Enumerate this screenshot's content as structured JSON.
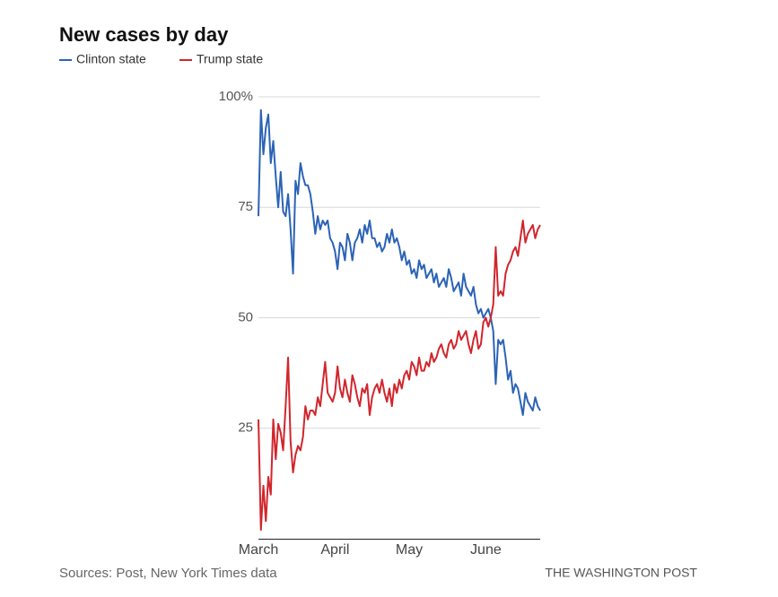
{
  "chart_data": {
    "type": "line",
    "title": "New cases by day",
    "source": "Sources: Post, New York Times data",
    "credit": "THE WASHINGTON POST",
    "categories": [
      "March",
      null,
      null,
      null,
      null,
      null,
      null,
      null,
      null,
      null,
      null,
      null,
      null,
      null,
      null,
      null,
      null,
      null,
      null,
      null,
      null,
      null,
      null,
      null,
      null,
      null,
      null,
      null,
      null,
      null,
      null,
      "April",
      null,
      null,
      null,
      null,
      null,
      null,
      null,
      null,
      null,
      null,
      null,
      null,
      null,
      null,
      null,
      null,
      null,
      null,
      null,
      null,
      null,
      null,
      null,
      null,
      null,
      null,
      null,
      null,
      null,
      "May",
      null,
      null,
      null,
      null,
      null,
      null,
      null,
      null,
      null,
      null,
      null,
      null,
      null,
      null,
      null,
      null,
      null,
      null,
      null,
      null,
      null,
      null,
      null,
      null,
      null,
      null,
      null,
      null,
      null,
      null,
      "June",
      null,
      null,
      null,
      null,
      null,
      null,
      null,
      null,
      null,
      null,
      null,
      null,
      null,
      null,
      null,
      null,
      null,
      null,
      null,
      null,
      null,
      null
    ],
    "series": [
      {
        "name": "Clinton state",
        "color": "#2b63b6",
        "values": [
          73,
          97,
          87,
          93,
          96,
          85,
          90,
          82,
          75,
          83,
          74,
          73,
          78,
          70,
          60,
          81,
          78,
          85,
          82,
          80,
          80,
          78,
          74,
          69,
          73,
          70,
          72,
          71,
          72,
          68,
          67,
          65,
          61,
          67,
          66,
          63,
          69,
          67,
          63,
          67,
          68,
          70,
          67,
          71,
          69,
          72,
          68,
          68,
          66,
          67,
          65,
          66,
          69,
          67,
          70,
          67,
          68,
          66,
          63,
          65,
          62,
          63,
          60,
          61,
          59,
          63,
          61,
          62,
          59,
          60,
          61,
          58,
          60,
          57,
          58,
          59,
          57,
          61,
          59,
          56,
          57,
          58,
          55,
          60,
          57,
          56,
          55,
          57,
          53,
          51,
          52,
          50,
          51,
          52,
          50,
          47,
          35,
          45,
          44,
          45,
          41,
          36,
          38,
          33,
          35,
          34,
          31,
          28,
          33,
          31,
          30,
          29,
          32,
          30,
          29
        ]
      },
      {
        "name": "Trump state",
        "color": "#d1262c",
        "values": [
          27,
          2,
          12,
          4,
          14,
          10,
          27,
          18,
          26,
          24,
          20,
          30,
          41,
          22,
          15,
          19,
          21,
          20,
          23,
          30,
          27,
          29,
          29,
          28,
          32,
          30,
          35,
          40,
          33,
          32,
          31,
          33,
          39,
          34,
          32,
          36,
          33,
          31,
          37,
          35,
          32,
          30,
          34,
          33,
          35,
          28,
          32,
          34,
          35,
          33,
          36,
          33,
          31,
          34,
          30,
          35,
          33,
          36,
          34,
          37,
          38,
          36,
          40,
          39,
          37,
          41,
          38,
          38,
          40,
          39,
          42,
          40,
          41,
          43,
          44,
          42,
          41,
          44,
          45,
          43,
          44,
          47,
          45,
          46,
          47,
          44,
          42,
          45,
          47,
          43,
          44,
          49,
          50,
          48,
          50,
          53,
          66,
          55,
          56,
          55,
          60,
          62,
          63,
          65,
          66,
          64,
          68,
          72,
          67,
          69,
          70,
          71,
          68,
          70,
          71
        ]
      }
    ],
    "ylim": [
      0,
      100
    ],
    "yticks": [
      {
        "value": 100,
        "label": "100%"
      },
      75,
      50,
      25
    ],
    "grid": true
  }
}
